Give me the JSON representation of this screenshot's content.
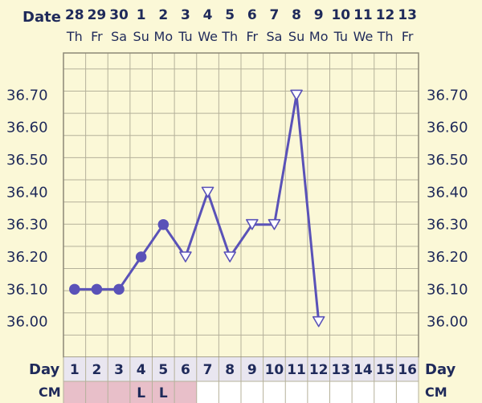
{
  "chart_data": {
    "type": "line",
    "header": {
      "date_label": "Date",
      "dates": [
        "28",
        "29",
        "30",
        "1",
        "2",
        "3",
        "4",
        "5",
        "6",
        "7",
        "8",
        "9",
        "10",
        "11",
        "12",
        "13"
      ],
      "weekdays": [
        "Th",
        "Fr",
        "Sa",
        "Su",
        "Mo",
        "Tu",
        "We",
        "Th",
        "Fr",
        "Sa",
        "Su",
        "Mo",
        "Tu",
        "We",
        "Th",
        "Fr"
      ]
    },
    "y_tick_labels": [
      "36.70",
      "36.60",
      "36.50",
      "36.40",
      "36.30",
      "36.20",
      "36.10",
      "36.00"
    ],
    "ylim": [
      35.89,
      36.83
    ],
    "grid": true,
    "days": [
      1,
      2,
      3,
      4,
      5,
      6,
      7,
      8,
      9,
      10,
      11,
      12,
      13,
      14,
      15,
      16
    ],
    "day_label": "Day",
    "cm_label": "CM",
    "cm_values": [
      "",
      "",
      "",
      "L",
      "L",
      "",
      "",
      "",
      "",
      "",
      "",
      "",
      "",
      "",
      "",
      ""
    ],
    "cm_shaded_days": [
      1,
      2,
      3,
      4,
      5,
      6
    ],
    "series": [
      {
        "values": [
          36.1,
          36.1,
          36.1,
          36.2,
          36.3,
          36.2,
          36.4,
          36.2,
          36.3,
          36.3,
          36.7,
          36.0
        ],
        "markers": [
          "circle",
          "circle",
          "circle",
          "circle",
          "circle",
          "triangle",
          "triangle",
          "triangle",
          "triangle",
          "triangle",
          "triangle",
          "triangle"
        ]
      }
    ],
    "colors": {
      "line": "#5a52b8",
      "marker_fill_circle": "#5a52b8",
      "marker_fill_triangle": "#ffffff",
      "grid": "#b5b19a",
      "plot_bg": "#fbf8d7",
      "row_bg": "#e9e6f0",
      "cm_shade": "#e8bfc9",
      "text": "#1f2a5a"
    }
  }
}
